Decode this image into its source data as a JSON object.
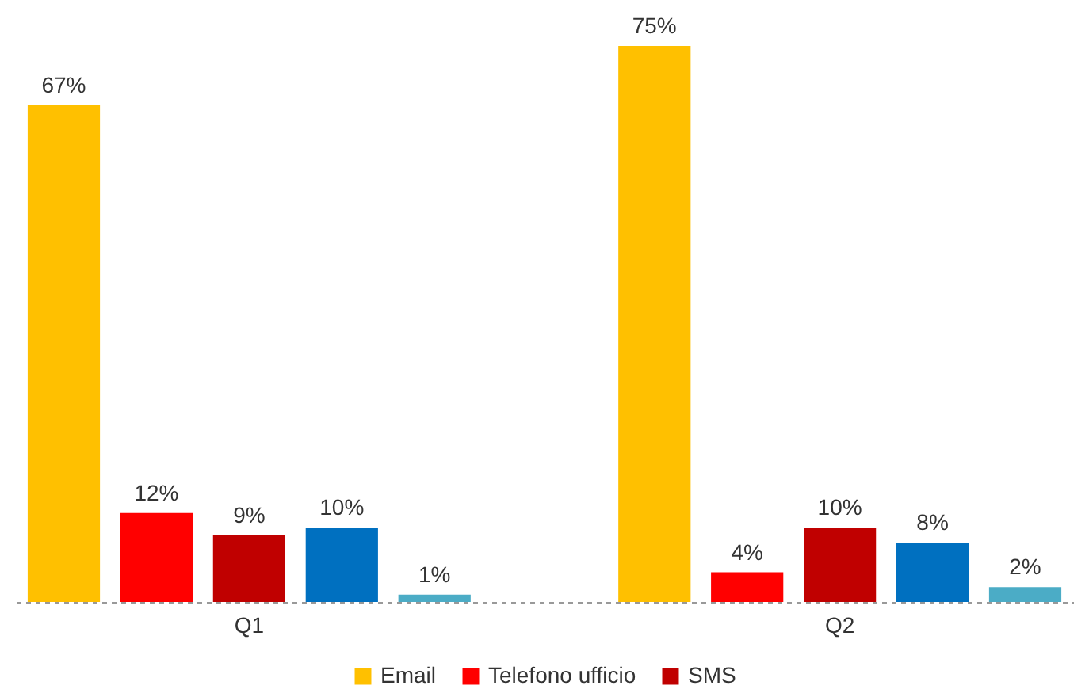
{
  "chart_data": {
    "type": "bar",
    "categories": [
      "Q1",
      "Q2"
    ],
    "series": [
      {
        "name": "Email",
        "color": "#ffc000",
        "values": [
          67,
          75
        ],
        "value_labels": [
          "67%",
          "75%"
        ]
      },
      {
        "name": "Telefono ufficio",
        "color": "#ff0000",
        "values": [
          12,
          4
        ],
        "value_labels": [
          "12%",
          "4%"
        ]
      },
      {
        "name": "SMS",
        "color": "#c00000",
        "values": [
          9,
          10
        ],
        "value_labels": [
          "9%",
          "10%"
        ]
      },
      {
        "color": "#0070c0",
        "values": [
          10,
          8
        ],
        "value_labels": [
          "10%",
          "8%"
        ]
      },
      {
        "color": "#4bacc6",
        "values": [
          1,
          2
        ],
        "value_labels": [
          "1%",
          "2%"
        ]
      }
    ],
    "legend": "bottom",
    "tick_labels": "x"
  }
}
